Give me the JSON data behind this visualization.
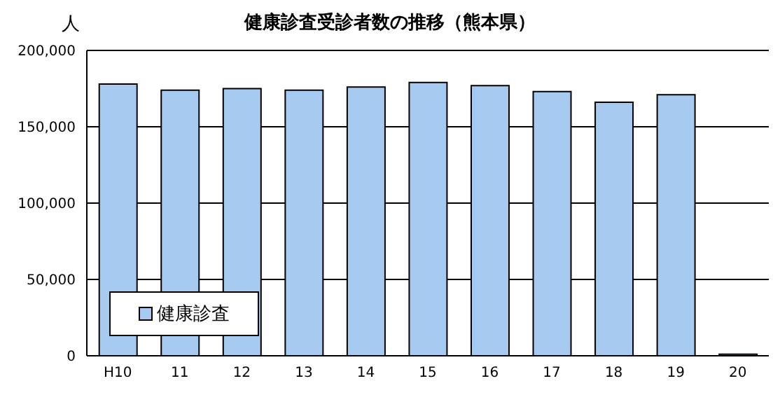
{
  "chart_data": {
    "type": "bar",
    "title": "健康診査受診者数の推移（熊本県）",
    "ylabel": "人",
    "categories": [
      "H10",
      "11",
      "12",
      "13",
      "14",
      "15",
      "16",
      "17",
      "18",
      "19",
      "20"
    ],
    "series": [
      {
        "name": "健康診査",
        "color": "#a6caf0",
        "values": [
          178000,
          174000,
          175000,
          174000,
          176000,
          179000,
          177000,
          173000,
          166000,
          171000,
          1000
        ]
      }
    ],
    "ylim": [
      0,
      200000
    ],
    "yticks": [
      {
        "value": 0,
        "label": "0"
      },
      {
        "value": 50000,
        "label": "50,000"
      },
      {
        "value": 100000,
        "label": "100,000"
      },
      {
        "value": 150000,
        "label": "150,000"
      },
      {
        "value": 200000,
        "label": "200,000"
      }
    ],
    "grid": "y",
    "legend": "bottom left"
  }
}
